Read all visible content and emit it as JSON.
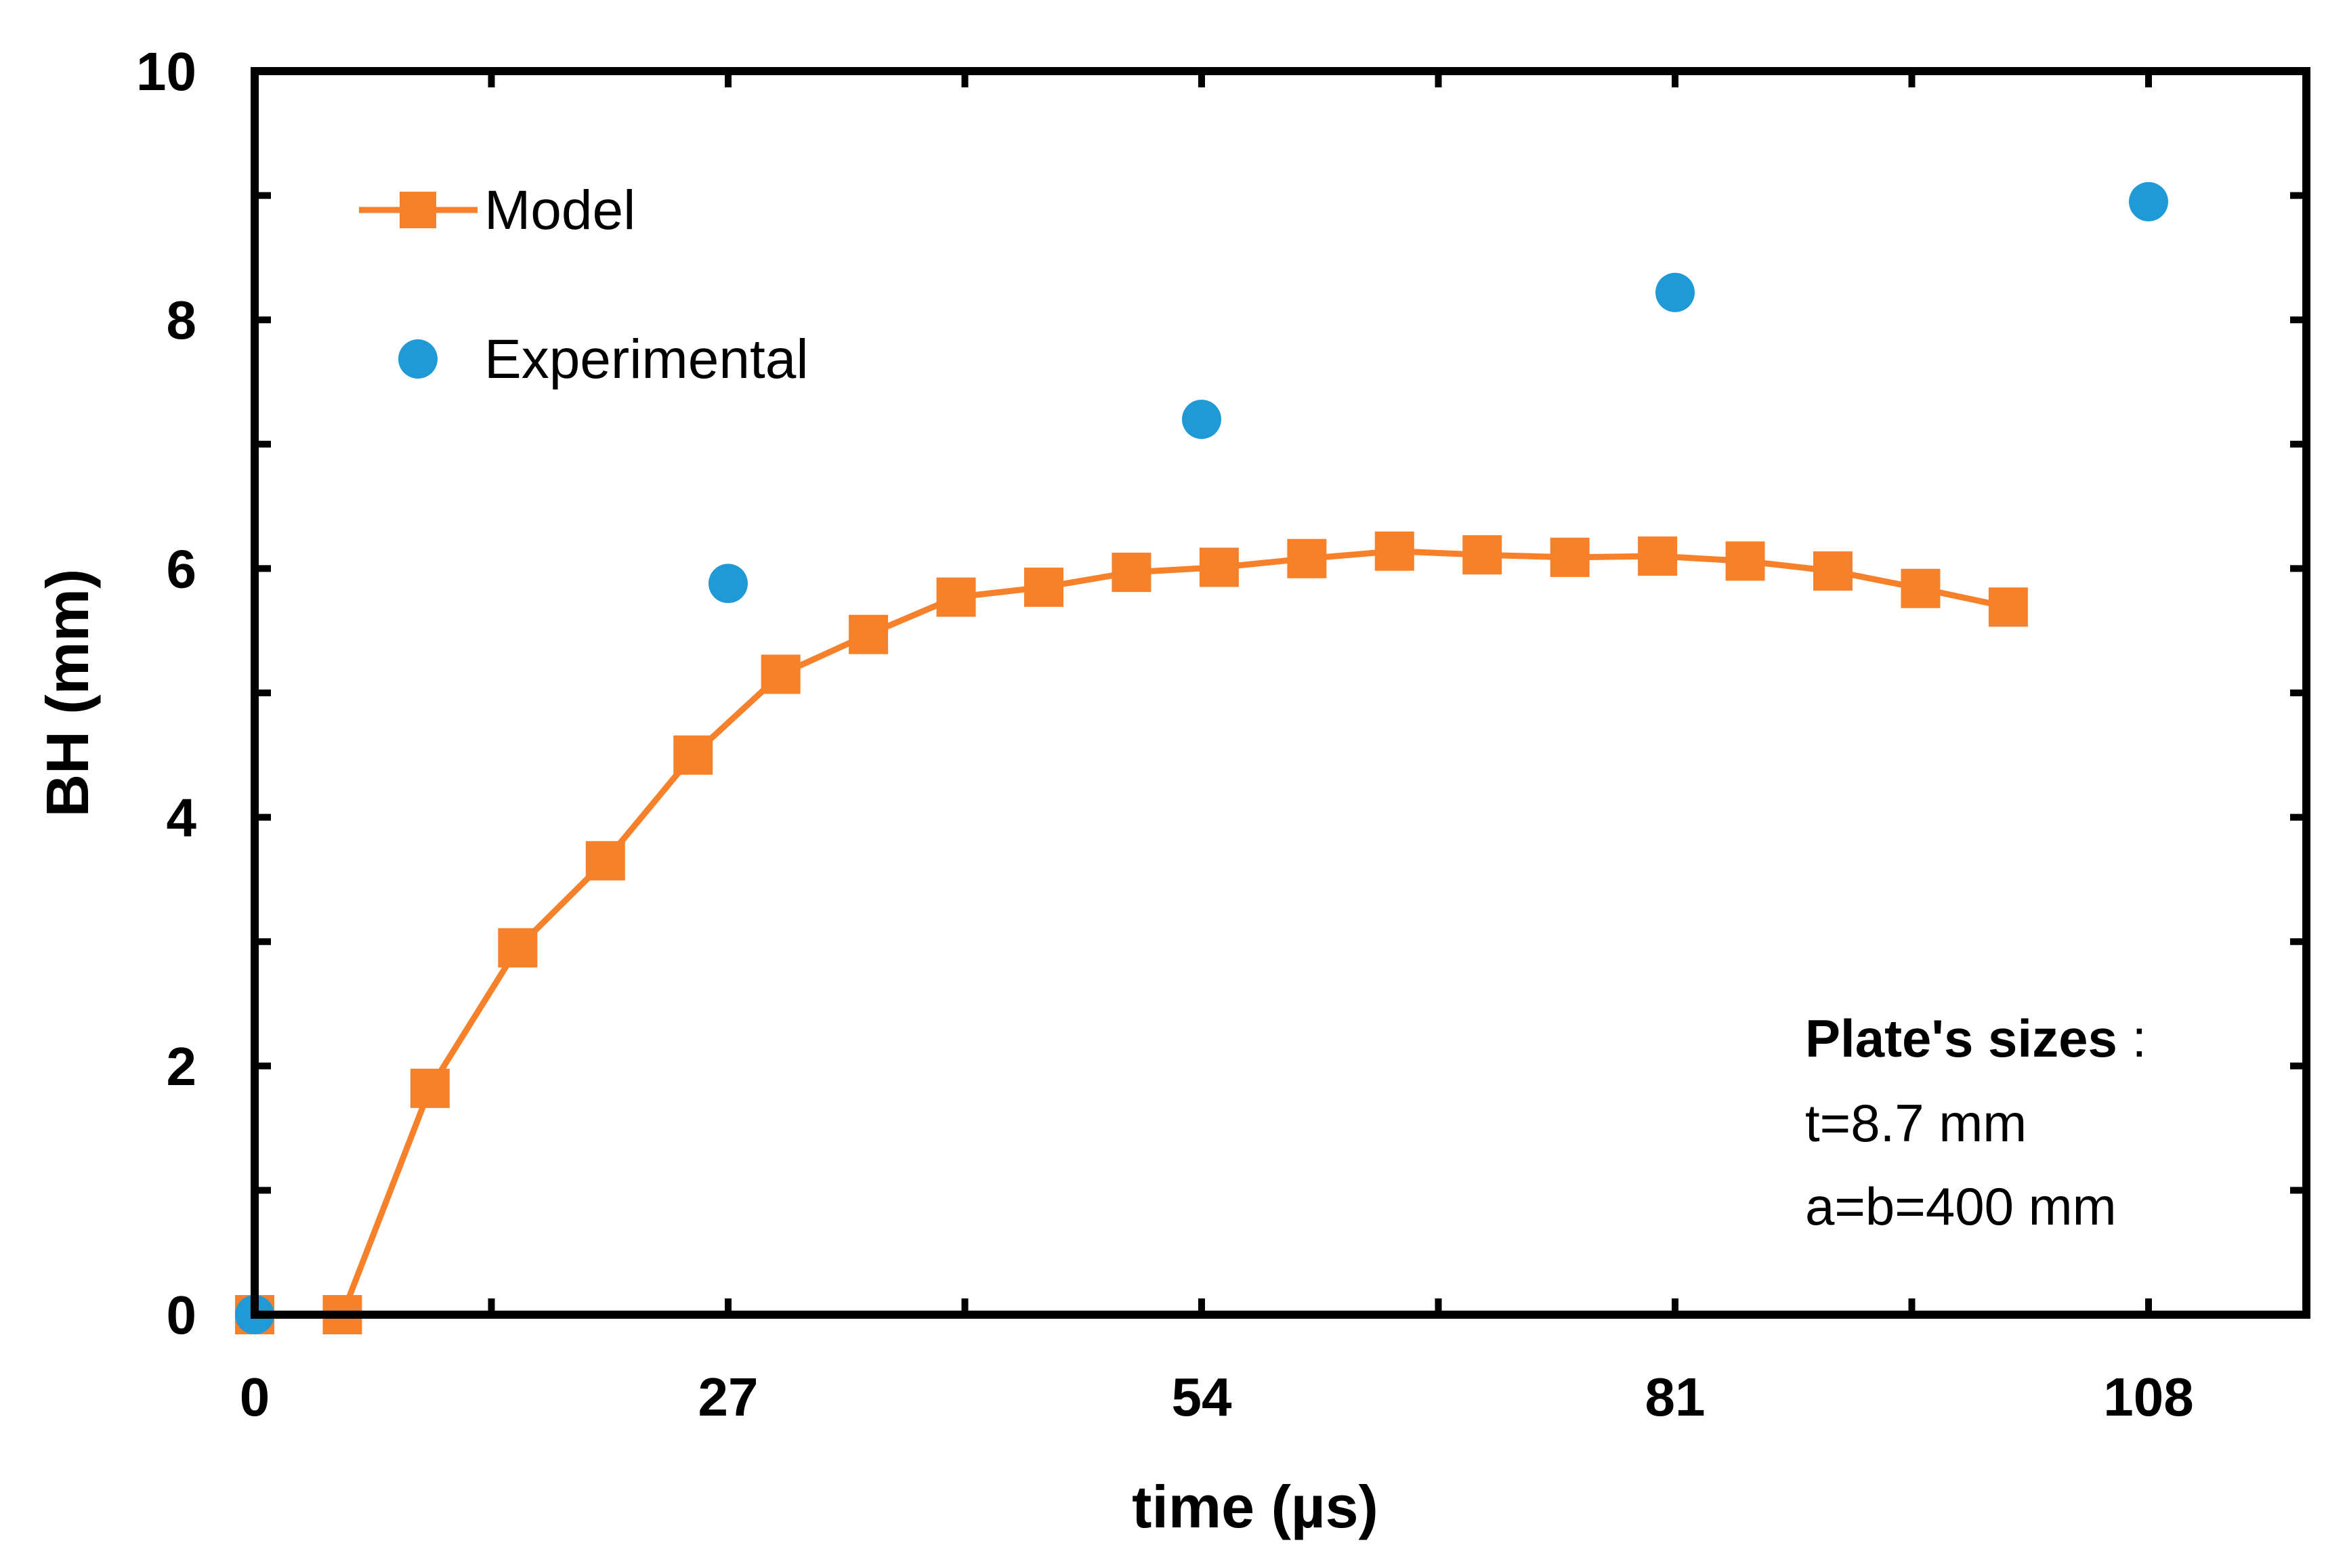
{
  "chart_data": {
    "type": "scatter",
    "xlabel": "time (µs)",
    "ylabel": "BH (mm)",
    "xlim": [
      0,
      117
    ],
    "ylim": [
      0,
      10
    ],
    "x_ticks": [
      "0",
      "27",
      "54",
      "81",
      "108"
    ],
    "y_ticks": [
      "0",
      "2",
      "4",
      "6",
      "8",
      "10"
    ],
    "grid": false,
    "legend_position": "top-left",
    "series": [
      {
        "name": "Model",
        "style": "line-with-square-markers",
        "color": "#F7812A",
        "x": [
          0,
          5,
          10,
          15,
          20,
          25,
          30,
          35,
          40,
          45,
          50,
          55,
          60,
          65,
          70,
          75,
          80,
          85,
          90,
          95,
          100
        ],
        "y": [
          0,
          0,
          1.82,
          2.95,
          3.65,
          4.5,
          5.15,
          5.47,
          5.77,
          5.85,
          5.97,
          6.01,
          6.08,
          6.14,
          6.11,
          6.09,
          6.1,
          6.06,
          5.98,
          5.84,
          5.69
        ]
      },
      {
        "name": "Experimental",
        "style": "circle-markers",
        "color": "#1F9AD6",
        "x": [
          0,
          27,
          54,
          81,
          108
        ],
        "y": [
          0,
          5.88,
          7.2,
          8.22,
          8.95
        ]
      }
    ],
    "annotation": {
      "heading": "Plate's sizes",
      "heading_suffix": " :",
      "lines": [
        "t=8.7 mm",
        "a=b=400 mm"
      ]
    }
  }
}
